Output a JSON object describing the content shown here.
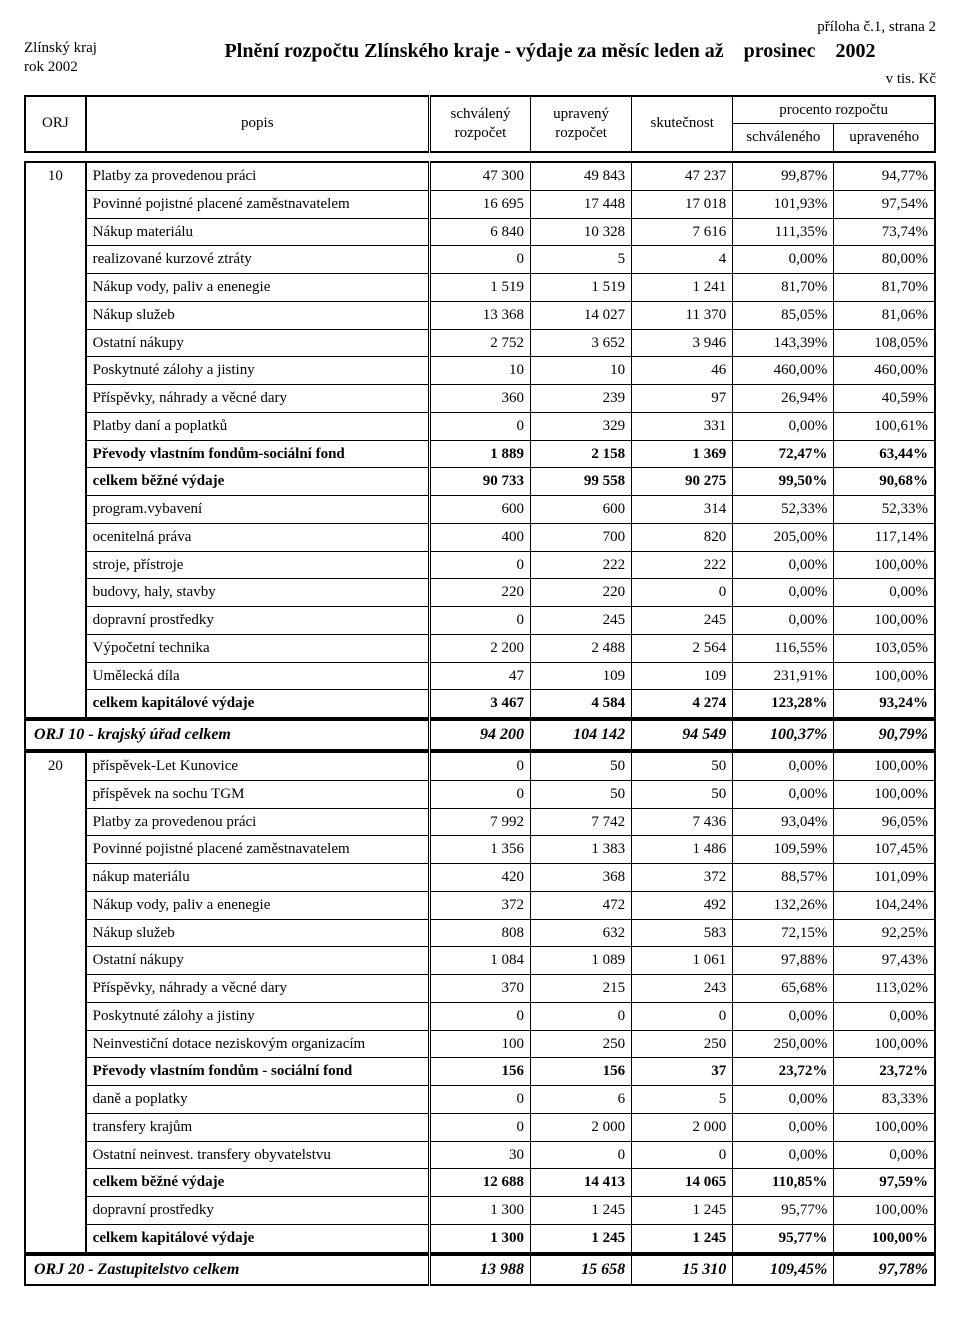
{
  "annex": "příloha č.1, strana 2",
  "region": "Zlínský kraj",
  "year_line": "rok 2002",
  "title_prefix": "Plnění rozpočtu Zlínského kraje - výdaje za měsíc leden až",
  "title_month": "prosinec",
  "title_year": "2002",
  "units": "v tis. Kč",
  "head": {
    "orj": "ORJ",
    "popis": "popis",
    "schvaleny": "schválený rozpočet",
    "upraveny": "upravený rozpočet",
    "skutecnost": "skutečnost",
    "procento": "procento rozpočtu",
    "schvaleneho": "schváleného",
    "upraveneho": "upraveného"
  },
  "groups": [
    {
      "orj": "10",
      "rows": [
        {
          "popis": "Platby za provedenou práci",
          "c1": "47 300",
          "c2": "49 843",
          "c3": "47 237",
          "p1": "99,87%",
          "p2": "94,77%"
        },
        {
          "popis": "Povinné pojistné placené zaměstnavatelem",
          "c1": "16 695",
          "c2": "17 448",
          "c3": "17 018",
          "p1": "101,93%",
          "p2": "97,54%"
        },
        {
          "popis": "Nákup materiálu",
          "c1": "6 840",
          "c2": "10 328",
          "c3": "7 616",
          "p1": "111,35%",
          "p2": "73,74%"
        },
        {
          "popis": "realizované kurzové ztráty",
          "c1": "0",
          "c2": "5",
          "c3": "4",
          "p1": "0,00%",
          "p2": "80,00%"
        },
        {
          "popis": "Nákup vody, paliv a enenegie",
          "c1": "1 519",
          "c2": "1 519",
          "c3": "1 241",
          "p1": "81,70%",
          "p2": "81,70%"
        },
        {
          "popis": "Nákup služeb",
          "c1": "13 368",
          "c2": "14 027",
          "c3": "11 370",
          "p1": "85,05%",
          "p2": "81,06%"
        },
        {
          "popis": "Ostatní nákupy",
          "c1": "2 752",
          "c2": "3 652",
          "c3": "3 946",
          "p1": "143,39%",
          "p2": "108,05%"
        },
        {
          "popis": "Poskytnuté zálohy a jistiny",
          "c1": "10",
          "c2": "10",
          "c3": "46",
          "p1": "460,00%",
          "p2": "460,00%"
        },
        {
          "popis": "Příspěvky, náhrady a věcné dary",
          "c1": "360",
          "c2": "239",
          "c3": "97",
          "p1": "26,94%",
          "p2": "40,59%"
        },
        {
          "popis": "Platby daní a poplatků",
          "c1": "0",
          "c2": "329",
          "c3": "331",
          "p1": "0,00%",
          "p2": "100,61%"
        },
        {
          "popis": "Převody vlastním fondům-sociální fond",
          "c1": "1 889",
          "c2": "2 158",
          "c3": "1 369",
          "p1": "72,47%",
          "p2": "63,44%",
          "bold": true
        },
        {
          "popis": "celkem běžné výdaje",
          "c1": "90 733",
          "c2": "99 558",
          "c3": "90 275",
          "p1": "99,50%",
          "p2": "90,68%",
          "bold": true
        },
        {
          "popis": "program.vybavení",
          "c1": "600",
          "c2": "600",
          "c3": "314",
          "p1": "52,33%",
          "p2": "52,33%"
        },
        {
          "popis": "ocenitelná práva",
          "c1": "400",
          "c2": "700",
          "c3": "820",
          "p1": "205,00%",
          "p2": "117,14%"
        },
        {
          "popis": "stroje, přístroje",
          "c1": "0",
          "c2": "222",
          "c3": "222",
          "p1": "0,00%",
          "p2": "100,00%"
        },
        {
          "popis": "budovy, haly, stavby",
          "c1": "220",
          "c2": "220",
          "c3": "0",
          "p1": "0,00%",
          "p2": "0,00%"
        },
        {
          "popis": "dopravní prostředky",
          "c1": "0",
          "c2": "245",
          "c3": "245",
          "p1": "0,00%",
          "p2": "100,00%"
        },
        {
          "popis": "Výpočetní technika",
          "c1": "2 200",
          "c2": "2 488",
          "c3": "2 564",
          "p1": "116,55%",
          "p2": "103,05%"
        },
        {
          "popis": "Umělecká díla",
          "c1": "47",
          "c2": "109",
          "c3": "109",
          "p1": "231,91%",
          "p2": "100,00%"
        },
        {
          "popis": "celkem kapitálové výdaje",
          "c1": "3 467",
          "c2": "4 584",
          "c3": "4 274",
          "p1": "123,28%",
          "p2": "93,24%",
          "bold": true
        }
      ],
      "summary": {
        "label": "ORJ 10 - krajský úřad celkem",
        "c1": "94 200",
        "c2": "104 142",
        "c3": "94 549",
        "p1": "100,37%",
        "p2": "90,79%"
      }
    },
    {
      "orj": "20",
      "rows": [
        {
          "popis": "příspěvek-Let Kunovice",
          "c1": "0",
          "c2": "50",
          "c3": "50",
          "p1": "0,00%",
          "p2": "100,00%"
        },
        {
          "popis": "příspěvek na sochu TGM",
          "c1": "0",
          "c2": "50",
          "c3": "50",
          "p1": "0,00%",
          "p2": "100,00%"
        },
        {
          "popis": "Platby za provedenou práci",
          "c1": "7 992",
          "c2": "7 742",
          "c3": "7 436",
          "p1": "93,04%",
          "p2": "96,05%"
        },
        {
          "popis": "Povinné pojistné placené zaměstnavatelem",
          "c1": "1 356",
          "c2": "1 383",
          "c3": "1 486",
          "p1": "109,59%",
          "p2": "107,45%"
        },
        {
          "popis": "nákup materiálu",
          "c1": "420",
          "c2": "368",
          "c3": "372",
          "p1": "88,57%",
          "p2": "101,09%"
        },
        {
          "popis": "Nákup vody, paliv a enenegie",
          "c1": "372",
          "c2": "472",
          "c3": "492",
          "p1": "132,26%",
          "p2": "104,24%"
        },
        {
          "popis": "Nákup služeb",
          "c1": "808",
          "c2": "632",
          "c3": "583",
          "p1": "72,15%",
          "p2": "92,25%"
        },
        {
          "popis": "Ostatní nákupy",
          "c1": "1 084",
          "c2": "1 089",
          "c3": "1 061",
          "p1": "97,88%",
          "p2": "97,43%"
        },
        {
          "popis": "Příspěvky, náhrady a věcné dary",
          "c1": "370",
          "c2": "215",
          "c3": "243",
          "p1": "65,68%",
          "p2": "113,02%"
        },
        {
          "popis": "Poskytnuté zálohy a jistiny",
          "c1": "0",
          "c2": "0",
          "c3": "0",
          "p1": "0,00%",
          "p2": "0,00%"
        },
        {
          "popis": "Neinvestiční dotace neziskovým organizacím",
          "c1": "100",
          "c2": "250",
          "c3": "250",
          "p1": "250,00%",
          "p2": "100,00%"
        },
        {
          "popis": "Převody vlastním fondům - sociální fond",
          "c1": "156",
          "c2": "156",
          "c3": "37",
          "p1": "23,72%",
          "p2": "23,72%",
          "bold": true
        },
        {
          "popis": "daně a poplatky",
          "c1": "0",
          "c2": "6",
          "c3": "5",
          "p1": "0,00%",
          "p2": "83,33%"
        },
        {
          "popis": "transfery krajům",
          "c1": "0",
          "c2": "2 000",
          "c3": "2 000",
          "p1": "0,00%",
          "p2": "100,00%"
        },
        {
          "popis": "Ostatní neinvest. transfery obyvatelstvu",
          "c1": "30",
          "c2": "0",
          "c3": "0",
          "p1": "0,00%",
          "p2": "0,00%"
        },
        {
          "popis": "celkem běžné výdaje",
          "c1": "12 688",
          "c2": "14 413",
          "c3": "14 065",
          "p1": "110,85%",
          "p2": "97,59%",
          "bold": true
        },
        {
          "popis": "dopravní prostředky",
          "c1": "1 300",
          "c2": "1 245",
          "c3": "1 245",
          "p1": "95,77%",
          "p2": "100,00%"
        },
        {
          "popis": "celkem kapitálové výdaje",
          "c1": "1 300",
          "c2": "1 245",
          "c3": "1 245",
          "p1": "95,77%",
          "p2": "100,00%",
          "bold": true
        }
      ],
      "summary": {
        "label": "ORJ 20 -  Zastupitelstvo celkem",
        "c1": "13 988",
        "c2": "15 658",
        "c3": "15 310",
        "p1": "109,45%",
        "p2": "97,78%"
      }
    }
  ]
}
